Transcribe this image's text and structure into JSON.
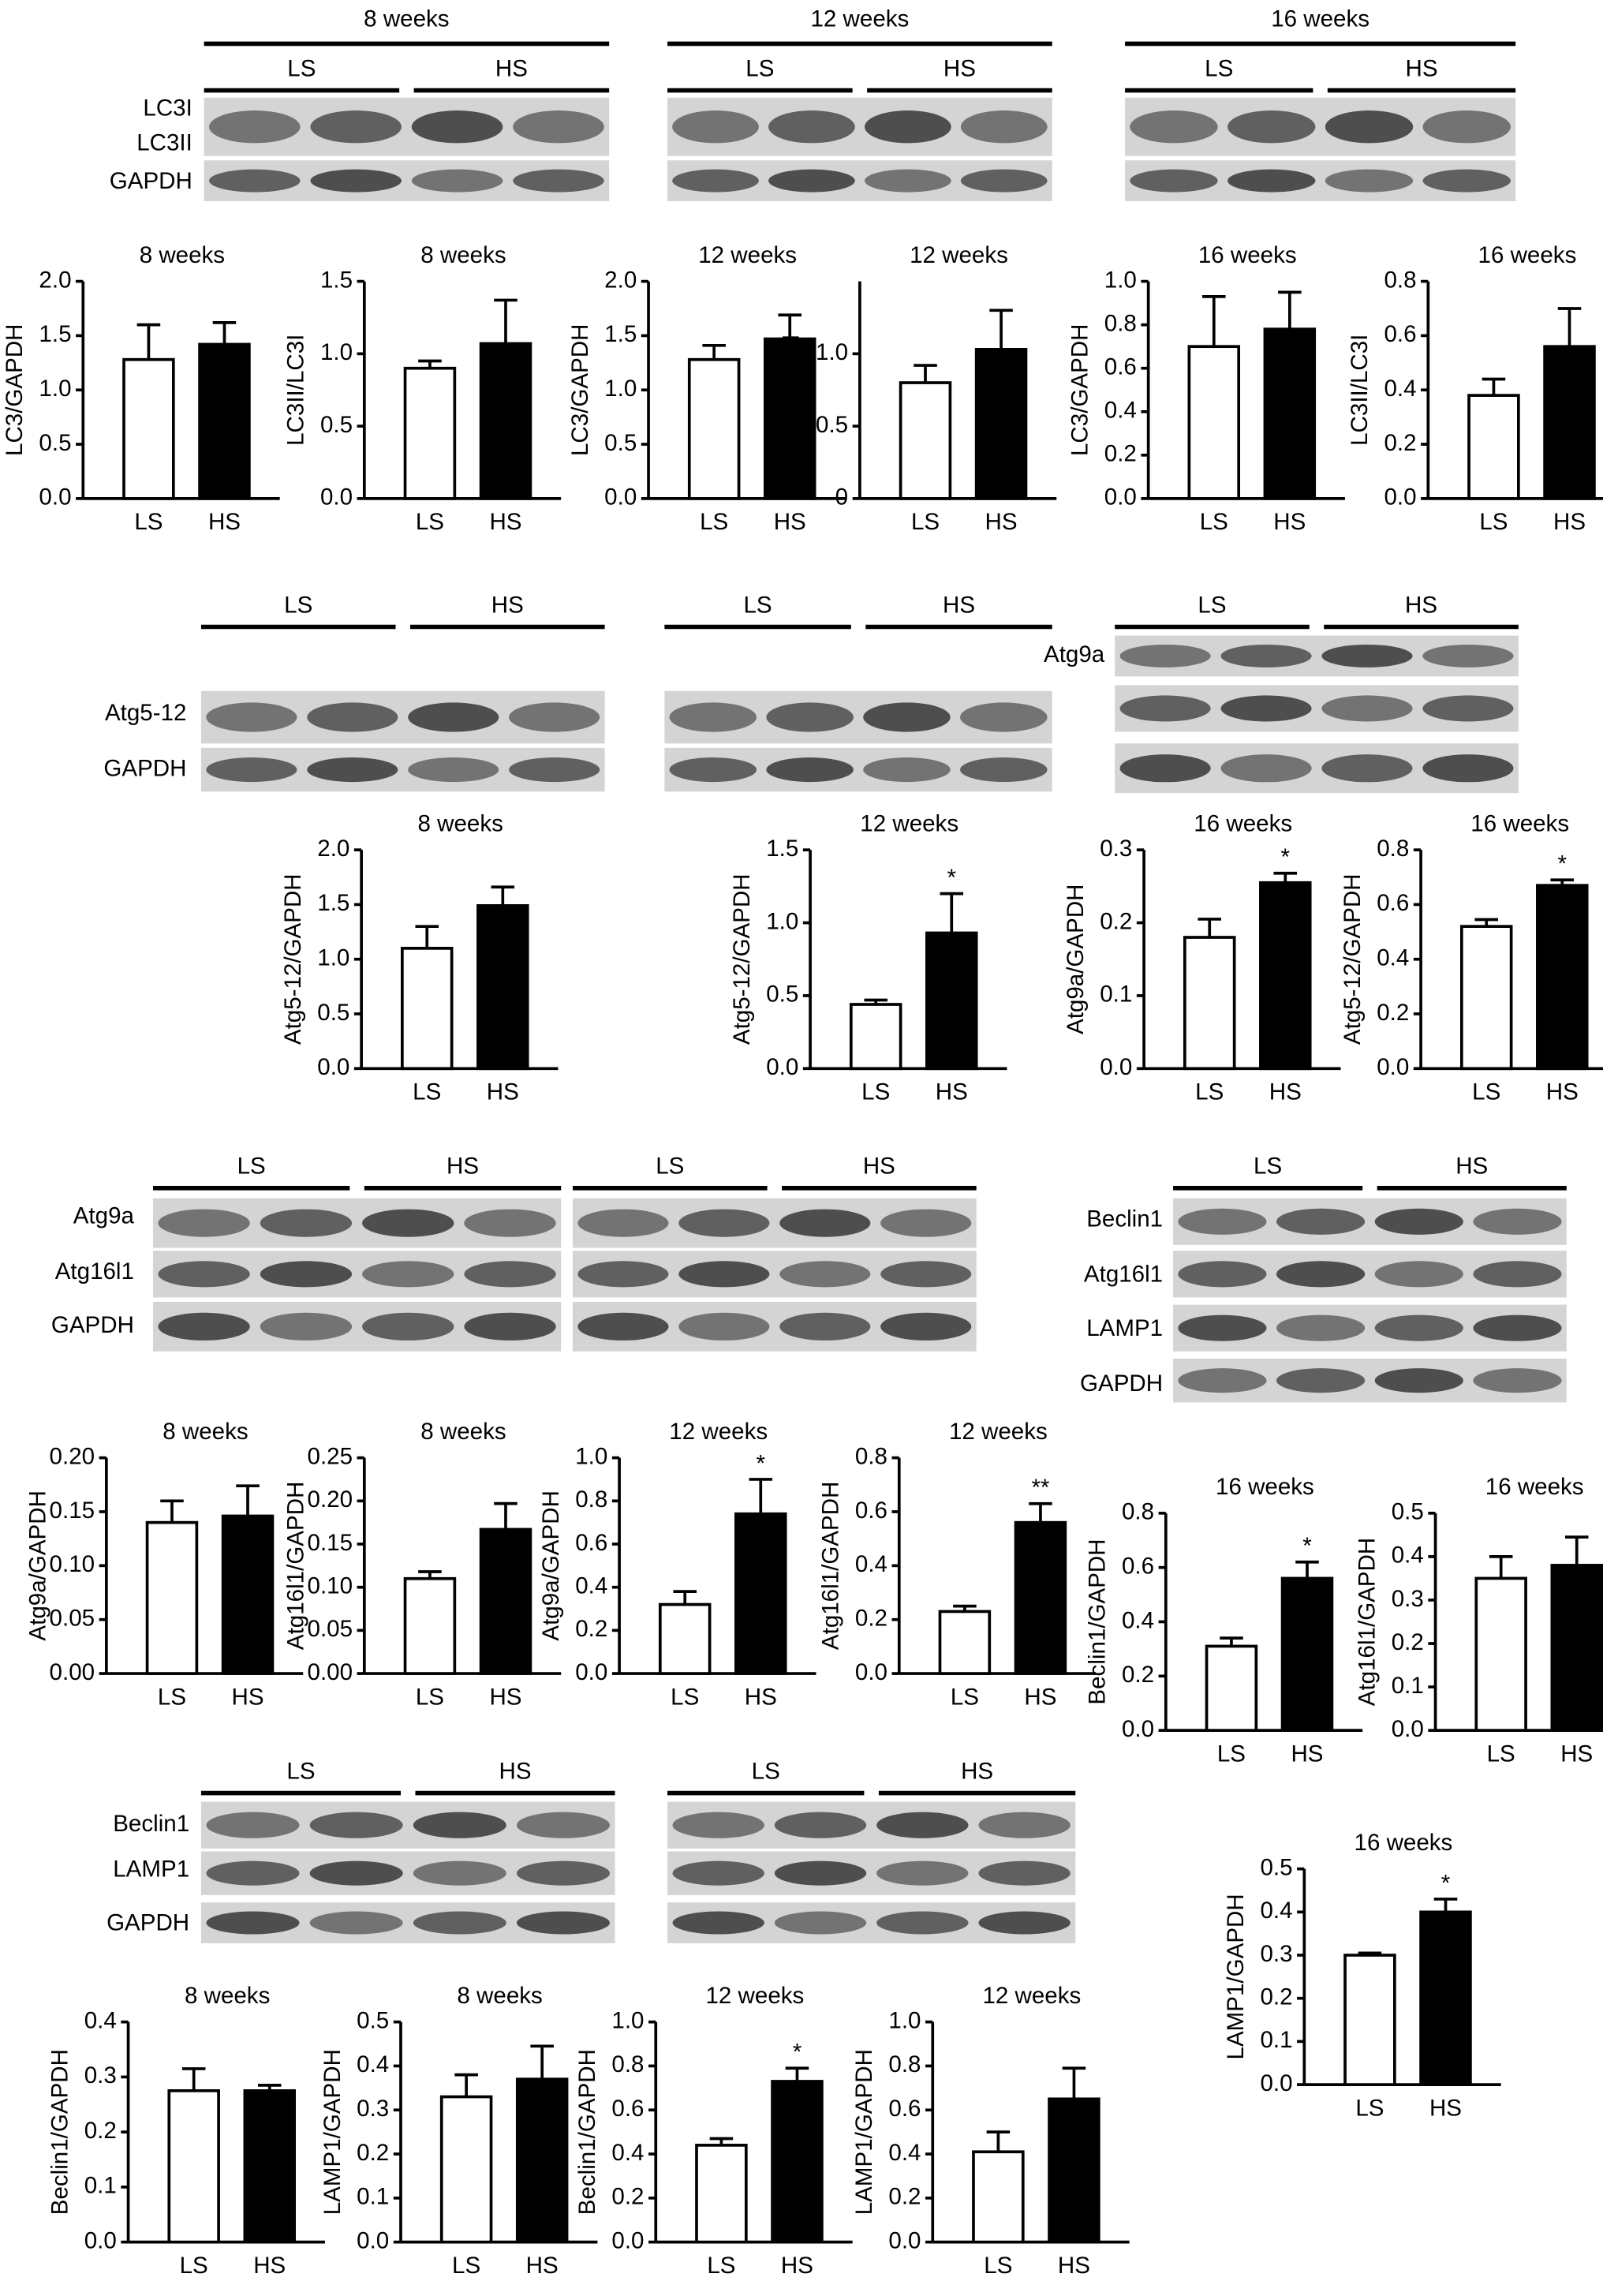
{
  "blot_panels": [
    {
      "title": "8 weeks",
      "groups": [
        "LS",
        "HS"
      ],
      "rows": [
        "LC3I",
        "LC3II",
        "GAPDH"
      ]
    },
    {
      "title": "12 weeks",
      "groups": [
        "LS",
        "HS"
      ]
    },
    {
      "title": "16 weeks",
      "groups": [
        "LS",
        "HS"
      ]
    },
    {
      "groups": [
        "LS",
        "HS"
      ],
      "rows": [
        "Atg5-12",
        "GAPDH"
      ]
    },
    {
      "groups": [
        "LS",
        "HS"
      ]
    },
    {
      "groups": [
        "LS",
        "HS"
      ],
      "rows": [
        "Atg9a"
      ]
    },
    {
      "groups": [
        "LS",
        "HS"
      ],
      "rows": [
        "Atg9a",
        "Atg16l1",
        "GAPDH"
      ]
    },
    {
      "groups": [
        "LS",
        "HS"
      ]
    },
    {
      "groups": [
        "LS",
        "HS"
      ],
      "rows": [
        "Beclin1",
        "Atg16l1",
        "LAMP1",
        "GAPDH"
      ]
    },
    {
      "groups": [
        "LS",
        "HS"
      ],
      "rows": [
        "Beclin1",
        "LAMP1",
        "GAPDH"
      ]
    },
    {
      "groups": [
        "LS",
        "HS"
      ]
    }
  ],
  "chart_data": [
    {
      "type": "bar",
      "title": "8 weeks",
      "ylabel": "LC3/GAPDH",
      "categories": [
        "LS",
        "HS"
      ],
      "values": [
        1.28,
        1.42
      ],
      "errors": [
        0.32,
        0.2
      ],
      "colors": [
        "#ffffff",
        "#000000"
      ],
      "ylim": [
        0,
        2
      ],
      "yticks": [
        {
          "value": 0,
          "label": "0.0"
        },
        0.5,
        {
          "value": 1,
          "label": "1.0"
        },
        1.5,
        {
          "value": 2,
          "label": "2.0"
        }
      ]
    },
    {
      "type": "bar",
      "title": "8 weeks",
      "ylabel": "LC3II/LC3I",
      "categories": [
        "LS",
        "HS"
      ],
      "values": [
        0.9,
        1.07
      ],
      "errors": [
        0.05,
        0.3
      ],
      "colors": [
        "#ffffff",
        "#000000"
      ],
      "ylim": [
        0,
        1.5
      ],
      "yticks": [
        {
          "value": 0,
          "label": "0.0"
        },
        0.5,
        {
          "value": 1,
          "label": "1.0"
        },
        1.5
      ]
    },
    {
      "type": "bar",
      "title": "12 weeks",
      "ylabel": "LC3/GAPDH",
      "categories": [
        "LS",
        "HS"
      ],
      "values": [
        1.28,
        1.47
      ],
      "errors": [
        0.13,
        0.22
      ],
      "colors": [
        "#ffffff",
        "#000000"
      ],
      "ylim": [
        0,
        2
      ],
      "yticks": [
        {
          "value": 0,
          "label": "0.0"
        },
        0.5,
        {
          "value": 1,
          "label": "1.0"
        },
        1.5,
        {
          "value": 2,
          "label": "2.0"
        }
      ]
    },
    {
      "type": "bar",
      "title": "12 weeks",
      "ylabel": "LC3II/LC3I",
      "categories": [
        "LS",
        "HS"
      ],
      "values": [
        0.8,
        1.03
      ],
      "errors": [
        0.12,
        0.27
      ],
      "colors": [
        "#ffffff",
        "#000000"
      ],
      "ylim": [
        0,
        1.5
      ],
      "yticks": [
        0,
        0.5,
        {
          "value": 1,
          "label": "1.0"
        }
      ]
    },
    {
      "type": "bar",
      "title": "16 weeks",
      "ylabel": "LC3/GAPDH",
      "categories": [
        "LS",
        "HS"
      ],
      "values": [
        0.7,
        0.78
      ],
      "errors": [
        0.23,
        0.17
      ],
      "colors": [
        "#ffffff",
        "#000000"
      ],
      "ylim": [
        0,
        1
      ],
      "yticks": [
        {
          "value": 0,
          "label": "0.0"
        },
        0.2,
        0.4,
        0.6,
        0.8,
        {
          "value": 1,
          "label": "1.0"
        }
      ]
    },
    {
      "type": "bar",
      "title": "16 weeks",
      "ylabel": "LC3II/LC3I",
      "categories": [
        "LS",
        "HS"
      ],
      "values": [
        0.38,
        0.56
      ],
      "errors": [
        0.06,
        0.14
      ],
      "colors": [
        "#ffffff",
        "#000000"
      ],
      "ylim": [
        0,
        0.8
      ],
      "yticks": [
        {
          "value": 0,
          "label": "0.0"
        },
        0.2,
        0.4,
        0.6,
        0.8
      ]
    },
    {
      "type": "bar",
      "title": "8 weeks",
      "ylabel": "Atg5-12/GAPDH",
      "categories": [
        "LS",
        "HS"
      ],
      "values": [
        1.1,
        1.49
      ],
      "errors": [
        0.2,
        0.17
      ],
      "colors": [
        "#ffffff",
        "#000000"
      ],
      "ylim": [
        0,
        2
      ],
      "yticks": [
        {
          "value": 0,
          "label": "0.0"
        },
        0.5,
        {
          "value": 1,
          "label": "1.0"
        },
        1.5,
        {
          "value": 2,
          "label": "2.0"
        }
      ]
    },
    {
      "type": "bar",
      "title": "12 weeks",
      "ylabel": "Atg5-12/GAPDH",
      "categories": [
        "LS",
        "HS"
      ],
      "values": [
        0.44,
        0.93
      ],
      "errors": [
        0.03,
        0.27
      ],
      "annotations": [
        null,
        "*"
      ],
      "colors": [
        "#ffffff",
        "#000000"
      ],
      "ylim": [
        0,
        1.5
      ],
      "yticks": [
        {
          "value": 0,
          "label": "0.0"
        },
        0.5,
        {
          "value": 1,
          "label": "1.0"
        },
        1.5
      ]
    },
    {
      "type": "bar",
      "title": "16 weeks",
      "ylabel": "Atg9a/GAPDH",
      "categories": [
        "LS",
        "HS"
      ],
      "values": [
        0.18,
        0.255
      ],
      "errors": [
        0.025,
        0.013
      ],
      "annotations": [
        null,
        "*"
      ],
      "colors": [
        "#ffffff",
        "#000000"
      ],
      "ylim": [
        0,
        0.3
      ],
      "yticks": [
        {
          "value": 0,
          "label": "0.0"
        },
        0.1,
        0.2,
        0.3
      ]
    },
    {
      "type": "bar",
      "title": "16 weeks",
      "ylabel": "Atg5-12/GAPDH",
      "categories": [
        "LS",
        "HS"
      ],
      "values": [
        0.52,
        0.67
      ],
      "errors": [
        0.025,
        0.02
      ],
      "annotations": [
        null,
        "*"
      ],
      "colors": [
        "#ffffff",
        "#000000"
      ],
      "ylim": [
        0,
        0.8
      ],
      "yticks": [
        {
          "value": 0,
          "label": "0.0"
        },
        0.2,
        0.4,
        0.6,
        0.8
      ]
    },
    {
      "type": "bar",
      "title": "8 weeks",
      "ylabel": "Atg9a/GAPDH",
      "categories": [
        "LS",
        "HS"
      ],
      "values": [
        0.14,
        0.146
      ],
      "errors": [
        0.02,
        0.028
      ],
      "colors": [
        "#ffffff",
        "#000000"
      ],
      "ylim": [
        0,
        0.2
      ],
      "yticks": [
        {
          "value": 0,
          "label": "0.00"
        },
        0.05,
        {
          "value": 0.1,
          "label": "0.10"
        },
        0.15,
        {
          "value": 0.2,
          "label": "0.20"
        }
      ]
    },
    {
      "type": "bar",
      "title": "8 weeks",
      "ylabel": "Atg16l1/GAPDH",
      "categories": [
        "LS",
        "HS"
      ],
      "values": [
        0.11,
        0.167
      ],
      "errors": [
        0.008,
        0.03
      ],
      "colors": [
        "#ffffff",
        "#000000"
      ],
      "ylim": [
        0,
        0.25
      ],
      "yticks": [
        {
          "value": 0,
          "label": "0.00"
        },
        0.05,
        {
          "value": 0.1,
          "label": "0.10"
        },
        0.15,
        {
          "value": 0.2,
          "label": "0.20"
        },
        0.25
      ]
    },
    {
      "type": "bar",
      "title": "12 weeks",
      "ylabel": "Atg9a/GAPDH",
      "categories": [
        "LS",
        "HS"
      ],
      "values": [
        0.32,
        0.74
      ],
      "errors": [
        0.06,
        0.16
      ],
      "annotations": [
        null,
        "*"
      ],
      "colors": [
        "#ffffff",
        "#000000"
      ],
      "ylim": [
        0,
        1
      ],
      "yticks": [
        {
          "value": 0,
          "label": "0.0"
        },
        0.2,
        0.4,
        0.6,
        0.8,
        {
          "value": 1,
          "label": "1.0"
        }
      ]
    },
    {
      "type": "bar",
      "title": "12 weeks",
      "ylabel": "Atg16l1/GAPDH",
      "categories": [
        "LS",
        "HS"
      ],
      "values": [
        0.23,
        0.56
      ],
      "errors": [
        0.02,
        0.07
      ],
      "annotations": [
        null,
        "**"
      ],
      "colors": [
        "#ffffff",
        "#000000"
      ],
      "ylim": [
        0,
        0.8
      ],
      "yticks": [
        {
          "value": 0,
          "label": "0.0"
        },
        0.2,
        0.4,
        0.6,
        0.8
      ]
    },
    {
      "type": "bar",
      "title": "16 weeks",
      "ylabel": "Beclin1/GAPDH",
      "categories": [
        "LS",
        "HS"
      ],
      "values": [
        0.31,
        0.56
      ],
      "errors": [
        0.03,
        0.06
      ],
      "annotations": [
        null,
        "*"
      ],
      "colors": [
        "#ffffff",
        "#000000"
      ],
      "ylim": [
        0,
        0.8
      ],
      "yticks": [
        {
          "value": 0,
          "label": "0.0"
        },
        0.2,
        0.4,
        0.6,
        0.8
      ]
    },
    {
      "type": "bar",
      "title": "16 weeks",
      "ylabel": "Atg16l1/GAPDH",
      "categories": [
        "LS",
        "HS"
      ],
      "values": [
        0.35,
        0.38
      ],
      "errors": [
        0.05,
        0.065
      ],
      "colors": [
        "#ffffff",
        "#000000"
      ],
      "ylim": [
        0,
        0.5
      ],
      "yticks": [
        {
          "value": 0,
          "label": "0.0"
        },
        0.1,
        0.2,
        0.3,
        0.4,
        0.5
      ]
    },
    {
      "type": "bar",
      "title": "16 weeks",
      "ylabel": "LAMP1/GAPDH",
      "categories": [
        "LS",
        "HS"
      ],
      "values": [
        0.3,
        0.4
      ],
      "errors": [
        0.005,
        0.03
      ],
      "annotations": [
        null,
        "*"
      ],
      "colors": [
        "#ffffff",
        "#000000"
      ],
      "ylim": [
        0,
        0.5
      ],
      "yticks": [
        {
          "value": 0,
          "label": "0.0"
        },
        0.1,
        0.2,
        0.3,
        0.4,
        0.5
      ]
    },
    {
      "type": "bar",
      "title": "8 weeks",
      "ylabel": "Beclin1/GAPDH",
      "categories": [
        "LS",
        "HS"
      ],
      "values": [
        0.275,
        0.275
      ],
      "errors": [
        0.04,
        0.01
      ],
      "colors": [
        "#ffffff",
        "#000000"
      ],
      "ylim": [
        0,
        0.4
      ],
      "yticks": [
        {
          "value": 0,
          "label": "0.0"
        },
        0.1,
        0.2,
        0.3,
        0.4
      ]
    },
    {
      "type": "bar",
      "title": "8 weeks",
      "ylabel": "LAMP1/GAPDH",
      "categories": [
        "LS",
        "HS"
      ],
      "values": [
        0.33,
        0.37
      ],
      "errors": [
        0.05,
        0.075
      ],
      "colors": [
        "#ffffff",
        "#000000"
      ],
      "ylim": [
        0,
        0.5
      ],
      "yticks": [
        {
          "value": 0,
          "label": "0.0"
        },
        0.1,
        0.2,
        0.3,
        0.4,
        0.5
      ]
    },
    {
      "type": "bar",
      "title": "12 weeks",
      "ylabel": "Beclin1/GAPDH",
      "categories": [
        "LS",
        "HS"
      ],
      "values": [
        0.44,
        0.73
      ],
      "errors": [
        0.03,
        0.06
      ],
      "annotations": [
        null,
        "*"
      ],
      "colors": [
        "#ffffff",
        "#000000"
      ],
      "ylim": [
        0,
        1
      ],
      "yticks": [
        {
          "value": 0,
          "label": "0.0"
        },
        0.2,
        0.4,
        0.6,
        0.8,
        {
          "value": 1,
          "label": "1.0"
        }
      ]
    },
    {
      "type": "bar",
      "title": "12 weeks",
      "ylabel": "LAMP1/GAPDH",
      "categories": [
        "LS",
        "HS"
      ],
      "values": [
        0.41,
        0.65
      ],
      "errors": [
        0.09,
        0.14
      ],
      "colors": [
        "#ffffff",
        "#000000"
      ],
      "ylim": [
        0,
        1
      ],
      "yticks": [
        {
          "value": 0,
          "label": "0.0"
        },
        0.2,
        0.4,
        0.6,
        0.8,
        {
          "value": 1,
          "label": "1.0"
        }
      ]
    }
  ]
}
